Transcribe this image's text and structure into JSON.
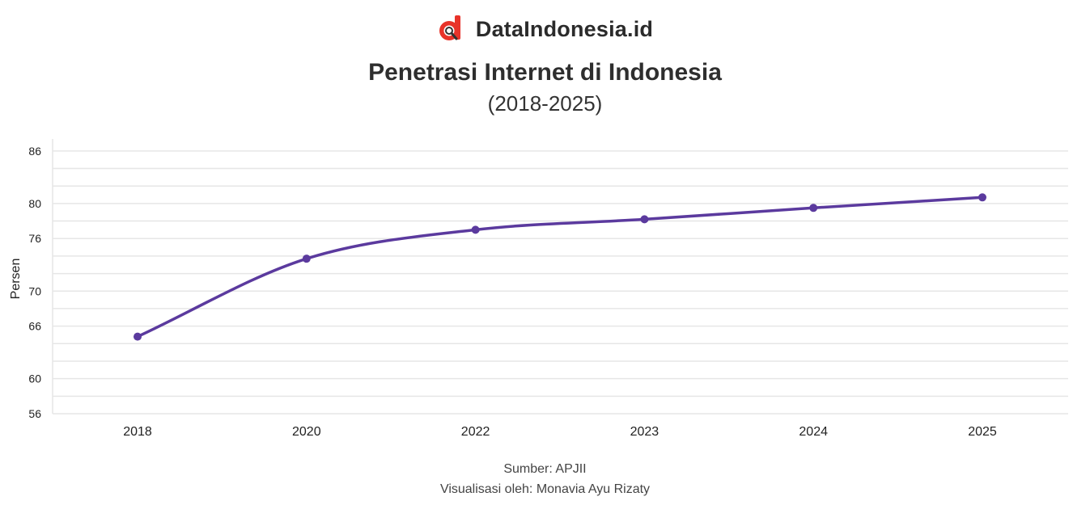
{
  "brand": {
    "name": "DataIndonesia.id",
    "logo_icon": "dataindonesia-logo-icon"
  },
  "header": {
    "title": "Penetrasi Internet di Indonesia",
    "subtitle": "(2018-2025)"
  },
  "chart_data": {
    "type": "line",
    "categories": [
      "2018",
      "2020",
      "2022",
      "2023",
      "2024",
      "2025"
    ],
    "series": [
      {
        "values": [
          64.8,
          73.7,
          77.0,
          78.2,
          79.5,
          80.7
        ]
      }
    ],
    "xlabel": "",
    "ylabel": "Persen",
    "ylim": [
      56,
      87
    ],
    "yticks": [
      56,
      60,
      66,
      70,
      76,
      80,
      86
    ],
    "ygrid": [
      56,
      58,
      60,
      62,
      64,
      66,
      68,
      70,
      72,
      74,
      76,
      78,
      80,
      82,
      84,
      86
    ],
    "grid": true,
    "smooth": true,
    "line_color": "#5b3a9e",
    "grid_color": "#e6e6e6"
  },
  "footer": {
    "source": "Sumber: APJII",
    "credit": "Visualisasi oleh: Monavia Ayu Rizaty"
  }
}
